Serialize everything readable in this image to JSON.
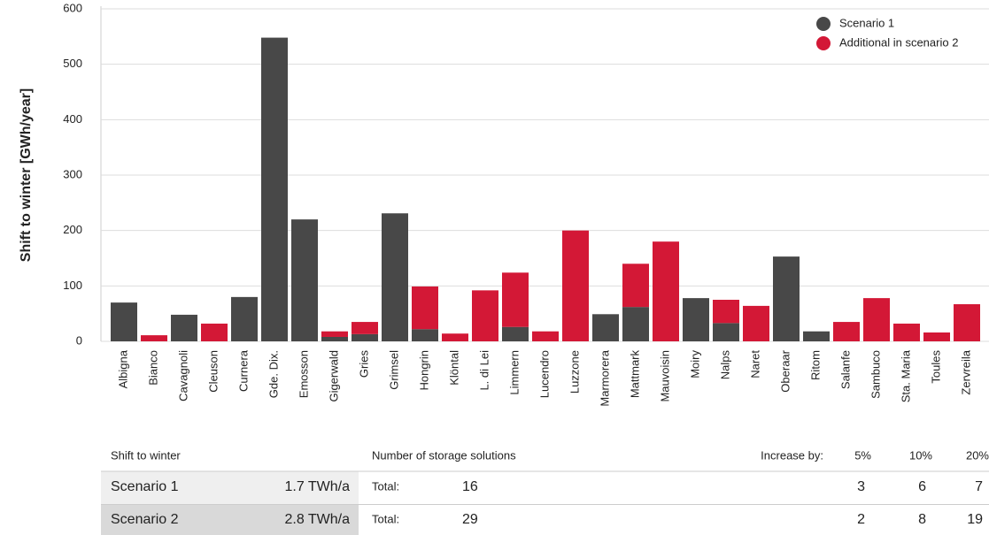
{
  "chart_data": {
    "type": "stacked_bar",
    "y_label": "Shift to winter [GWh/year]",
    "categories": [
      "Albigna",
      "Bianco",
      "Cavagnoli",
      "Cleuson",
      "Curnera",
      "Gde. Dix.",
      "Emosson",
      "Gigerwald",
      "Gries",
      "Grimsel",
      "Hongrin",
      "Klöntal",
      "L. di Lei",
      "Limmern",
      "Lucendro",
      "Luzzone",
      "Marmorera",
      "Mattmark",
      "Mauvoisin",
      "Moiry",
      "Nalps",
      "Naret",
      "Oberaar",
      "Ritom",
      "Salanfe",
      "Sambuco",
      "Sta. Maria",
      "Toules",
      "Zervreila"
    ],
    "series": [
      {
        "name": "Scenario 1",
        "color": "#484848",
        "values": [
          70,
          0,
          48,
          0,
          80,
          548,
          220,
          8,
          13,
          231,
          22,
          0,
          0,
          26,
          0,
          0,
          49,
          62,
          0,
          78,
          33,
          0,
          153,
          18,
          0,
          0,
          0,
          0,
          0
        ]
      },
      {
        "name": "Additional in scenario 2",
        "color": "#d31836",
        "values": [
          0,
          11,
          0,
          32,
          0,
          0,
          0,
          10,
          22,
          0,
          77,
          14,
          92,
          98,
          18,
          200,
          0,
          78,
          180,
          0,
          42,
          64,
          0,
          0,
          35,
          78,
          32,
          16,
          67
        ]
      }
    ],
    "ylim": [
      0,
      600
    ],
    "yticks": [
      0,
      100,
      200,
      300,
      400,
      500,
      600
    ],
    "grid": true,
    "legend": "upper right"
  },
  "table": {
    "header": {
      "title": "Shift to winter",
      "storage": "Number of storage solutions",
      "increase": "Increase by:",
      "levels": [
        "5%",
        "10%",
        "20%"
      ]
    },
    "rows": [
      {
        "name": "Scenario 1",
        "shift": "1.7 TWh/a",
        "total_label": "Total:",
        "total": 16,
        "increases": [
          3,
          6,
          7
        ]
      },
      {
        "name": "Scenario 2",
        "shift": "2.8 TWh/a",
        "total_label": "Total:",
        "total": 29,
        "increases": [
          2,
          8,
          19
        ]
      }
    ]
  }
}
